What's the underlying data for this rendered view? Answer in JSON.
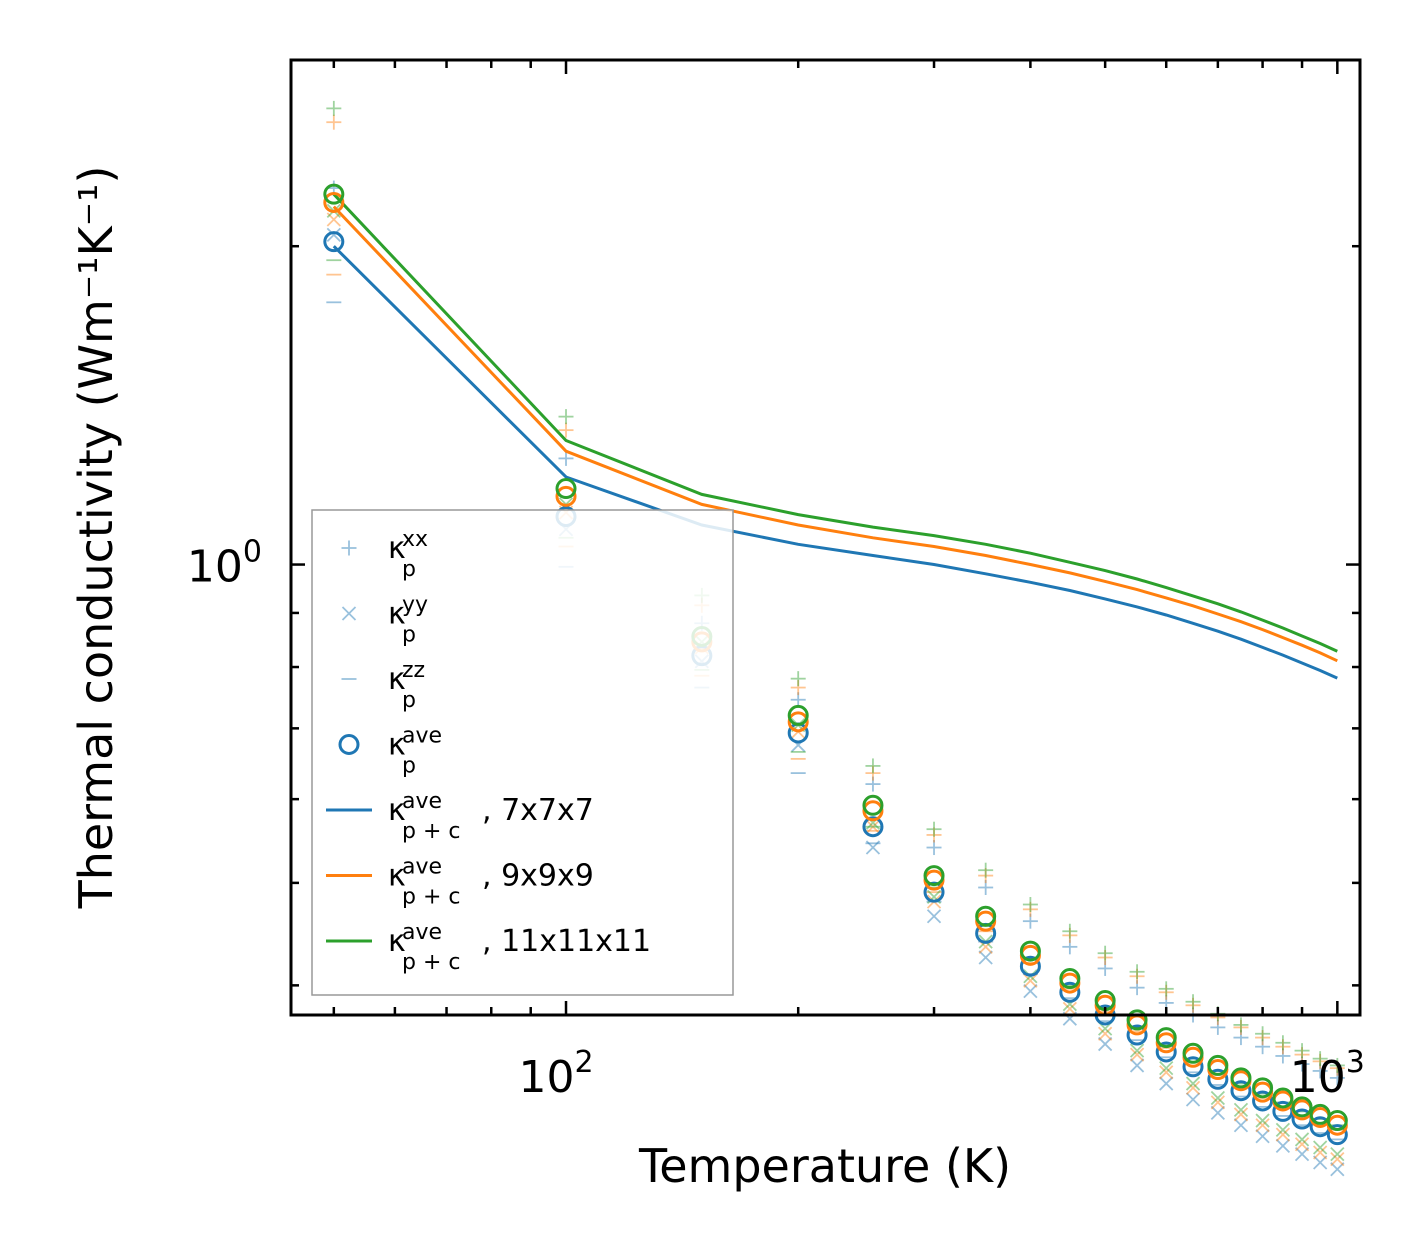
{
  "chart_data": {
    "type": "scatter",
    "title": "",
    "xlabel": "Temperature (K)",
    "ylabel": "Thermal conductivity (Wm⁻¹K⁻¹)",
    "xscale": "log",
    "yscale": "log",
    "xlim": [
      44,
      1070
    ],
    "ylim": [
      0.375,
      3.0
    ],
    "xticks": [
      {
        "value": 100,
        "base": "10",
        "exp": "2"
      },
      {
        "value": 1000,
        "base": "10",
        "exp": "3"
      }
    ],
    "yticks": [
      {
        "value": 1,
        "base": "10",
        "exp": "0"
      }
    ],
    "legend_position": "lower-left",
    "x": [
      50,
      100,
      150,
      200,
      250,
      300,
      350,
      400,
      450,
      500,
      550,
      600,
      650,
      700,
      750,
      800,
      850,
      900,
      950,
      1000
    ],
    "series": [
      {
        "name": "7x7x7",
        "color": "#1f77b4",
        "kxx": [
          2.27,
          1.26,
          0.88,
          0.745,
          0.62,
          0.54,
          0.495,
          0.46,
          0.435,
          0.415,
          0.398,
          0.385,
          0.375,
          0.365,
          0.357,
          0.35,
          0.343,
          0.337,
          0.332,
          0.327
        ],
        "kyy": [
          2.05,
          1.08,
          0.81,
          0.675,
          0.54,
          0.465,
          0.425,
          0.395,
          0.372,
          0.352,
          0.336,
          0.323,
          0.312,
          0.303,
          0.295,
          0.288,
          0.282,
          0.277,
          0.272,
          0.268
        ],
        "kzz": [
          1.77,
          0.995,
          0.765,
          0.635,
          0.545,
          0.48,
          0.44,
          0.41,
          0.389,
          0.37,
          0.355,
          0.342,
          0.331,
          0.322,
          0.314,
          0.307,
          0.301,
          0.295,
          0.29,
          0.286
        ],
        "kave": [
          2.02,
          1.11,
          0.82,
          0.693,
          0.565,
          0.49,
          0.448,
          0.417,
          0.394,
          0.375,
          0.359,
          0.346,
          0.335,
          0.326,
          0.318,
          0.311,
          0.304,
          0.299,
          0.294,
          0.289
        ],
        "ktot": [
          2.0,
          1.21,
          1.09,
          1.045,
          1.02,
          1.0,
          0.98,
          0.962,
          0.945,
          0.928,
          0.912,
          0.896,
          0.88,
          0.865,
          0.85,
          0.835,
          0.821,
          0.807,
          0.794,
          0.781
        ]
      },
      {
        "name": "9x9x9",
        "color": "#ff7f0e",
        "kxx": [
          2.62,
          1.34,
          0.915,
          0.765,
          0.635,
          0.555,
          0.508,
          0.472,
          0.446,
          0.425,
          0.408,
          0.394,
          0.383,
          0.373,
          0.365,
          0.357,
          0.35,
          0.344,
          0.339,
          0.334
        ],
        "kyy": [
          2.12,
          1.12,
          0.835,
          0.695,
          0.565,
          0.48,
          0.435,
          0.404,
          0.38,
          0.36,
          0.344,
          0.331,
          0.32,
          0.31,
          0.302,
          0.295,
          0.289,
          0.283,
          0.278,
          0.274
        ],
        "kzz": [
          1.88,
          1.04,
          0.785,
          0.655,
          0.56,
          0.49,
          0.45,
          0.42,
          0.397,
          0.378,
          0.362,
          0.349,
          0.338,
          0.329,
          0.321,
          0.313,
          0.307,
          0.301,
          0.296,
          0.292
        ],
        "kave": [
          2.2,
          1.16,
          0.845,
          0.71,
          0.585,
          0.503,
          0.46,
          0.427,
          0.402,
          0.383,
          0.367,
          0.353,
          0.342,
          0.333,
          0.325,
          0.317,
          0.311,
          0.305,
          0.3,
          0.295
        ],
        "ktot": [
          2.18,
          1.28,
          1.14,
          1.09,
          1.06,
          1.04,
          1.02,
          1.0,
          0.982,
          0.964,
          0.947,
          0.93,
          0.914,
          0.898,
          0.883,
          0.868,
          0.853,
          0.839,
          0.825,
          0.811
        ]
      },
      {
        "name": "11x11x11",
        "color": "#2ca02c",
        "kxx": [
          2.7,
          1.38,
          0.935,
          0.78,
          0.645,
          0.562,
          0.514,
          0.477,
          0.45,
          0.429,
          0.412,
          0.397,
          0.386,
          0.376,
          0.367,
          0.36,
          0.353,
          0.347,
          0.341,
          0.336
        ],
        "kyy": [
          2.16,
          1.14,
          0.845,
          0.705,
          0.57,
          0.485,
          0.44,
          0.408,
          0.384,
          0.364,
          0.347,
          0.334,
          0.323,
          0.313,
          0.305,
          0.298,
          0.292,
          0.286,
          0.281,
          0.277
        ],
        "kzz": [
          1.94,
          1.06,
          0.795,
          0.665,
          0.565,
          0.495,
          0.455,
          0.424,
          0.4,
          0.381,
          0.365,
          0.352,
          0.341,
          0.332,
          0.323,
          0.316,
          0.31,
          0.304,
          0.299,
          0.295
        ],
        "kave": [
          2.24,
          1.18,
          0.855,
          0.72,
          0.592,
          0.508,
          0.465,
          0.431,
          0.406,
          0.387,
          0.371,
          0.357,
          0.345,
          0.336,
          0.327,
          0.32,
          0.313,
          0.307,
          0.302,
          0.298
        ],
        "ktot": [
          2.24,
          1.31,
          1.165,
          1.115,
          1.085,
          1.065,
          1.045,
          1.025,
          1.005,
          0.987,
          0.969,
          0.951,
          0.934,
          0.918,
          0.902,
          0.886,
          0.871,
          0.856,
          0.842,
          0.828
        ]
      }
    ],
    "legend": [
      {
        "kind": "plus",
        "sym": "κ",
        "sub": "p",
        "sup": "xx",
        "suffix": ""
      },
      {
        "kind": "cross",
        "sym": "κ",
        "sub": "p",
        "sup": "yy",
        "suffix": ""
      },
      {
        "kind": "dash",
        "sym": "κ",
        "sub": "p",
        "sup": "zz",
        "suffix": ""
      },
      {
        "kind": "circle",
        "sym": "κ",
        "sub": "p",
        "sup": "ave",
        "suffix": ""
      },
      {
        "kind": "line",
        "color": "#1f77b4",
        "sym": "κ",
        "sub": "p + c",
        "sup": "ave",
        "suffix": ", 7x7x7"
      },
      {
        "kind": "line",
        "color": "#ff7f0e",
        "sym": "κ",
        "sub": "p + c",
        "sup": "ave",
        "suffix": ", 9x9x9"
      },
      {
        "kind": "line",
        "color": "#2ca02c",
        "sym": "κ",
        "sub": "p + c",
        "sup": "ave",
        "suffix": ", 11x11x11"
      }
    ],
    "legend_marker_color": "#1f77b4"
  }
}
